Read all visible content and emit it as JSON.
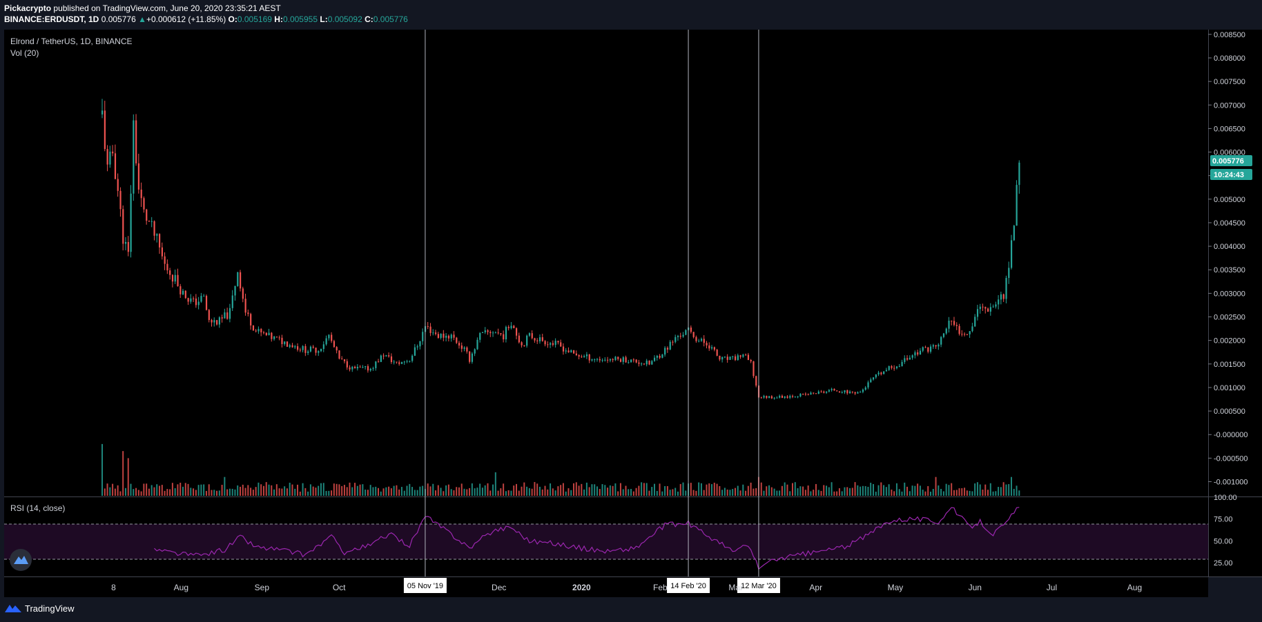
{
  "header": {
    "author": "Pickacrypto",
    "published": "published on TradingView.com, June 20, 2020 23:35:21 AEST",
    "symbol": "BINANCE:ERDUSDT, 1D",
    "last": "0.005776",
    "change_arrow": "▲",
    "change": "+0.000612 (+11.85%)",
    "o_label": "O:",
    "o": "0.005169",
    "h_label": "H:",
    "h": "0.005955",
    "l_label": "L:",
    "l": "0.005092",
    "c_label": "C:",
    "c": "0.005776"
  },
  "legend": {
    "title": "Elrond / TetherUS, 1D, BINANCE",
    "vol": "Vol (20)",
    "rsi": "RSI (14, close)"
  },
  "price_badge": "0.005776",
  "countdown_badge": "10:24:43",
  "footer": {
    "brand": "TradingView",
    "logo_icon": "tradingview-logo-icon"
  },
  "colors": {
    "background": "#000000",
    "frame": "#131722",
    "up": "#26a69a",
    "down": "#ef5350",
    "rsi_line": "#9c27b0",
    "rsi_band": "#1e0a24"
  },
  "chart_data": {
    "type": "candlestick",
    "ylim": [
      -0.0013,
      0.0086
    ],
    "y_ticks": [
      "0.008500",
      "0.008000",
      "0.007500",
      "0.007000",
      "0.006500",
      "0.006000",
      "0.005500",
      "0.005000",
      "0.004500",
      "0.004000",
      "0.003500",
      "0.003000",
      "0.002500",
      "0.002000",
      "0.001500",
      "0.001000",
      "0.000500",
      "-0.000000",
      "-0.000500",
      "-0.001000"
    ],
    "x_range": [
      "2019-07-04",
      "2020-08-31"
    ],
    "x_ticks": [
      {
        "label": "8",
        "date": "2019-07-08"
      },
      {
        "label": "Aug",
        "date": "2019-08-01"
      },
      {
        "label": "Sep",
        "date": "2019-09-01"
      },
      {
        "label": "Oct",
        "date": "2019-10-01"
      },
      {
        "label": "Dec",
        "date": "2019-12-01"
      },
      {
        "label": "2020",
        "date": "2020-01-01"
      },
      {
        "label": "Feb",
        "date": "2020-02-01"
      },
      {
        "label": "Mar",
        "date": "2020-03-01"
      },
      {
        "label": "Apr",
        "date": "2020-04-01"
      },
      {
        "label": "May",
        "date": "2020-05-01"
      },
      {
        "label": "Jun",
        "date": "2020-06-01"
      },
      {
        "label": "Jul",
        "date": "2020-07-01"
      },
      {
        "label": "Aug",
        "date": "2020-08-01"
      }
    ],
    "markers": [
      {
        "label": "05 Nov '19",
        "date": "2019-11-05"
      },
      {
        "label": "14 Feb '20",
        "date": "2020-02-14"
      },
      {
        "label": "12 Mar '20",
        "date": "2020-03-12"
      }
    ],
    "close_path": [
      [
        "2019-07-04",
        0.0068
      ],
      [
        "2019-07-06",
        0.0056
      ],
      [
        "2019-07-08",
        0.006
      ],
      [
        "2019-07-10",
        0.0052
      ],
      [
        "2019-07-12",
        0.0042
      ],
      [
        "2019-07-14",
        0.0038
      ],
      [
        "2019-07-16",
        0.0066
      ],
      [
        "2019-07-18",
        0.0052
      ],
      [
        "2019-07-20",
        0.0047
      ],
      [
        "2019-07-22",
        0.0045
      ],
      [
        "2019-07-25",
        0.0041
      ],
      [
        "2019-07-28",
        0.0036
      ],
      [
        "2019-08-01",
        0.0033
      ],
      [
        "2019-08-04",
        0.003
      ],
      [
        "2019-08-08",
        0.0028
      ],
      [
        "2019-08-12",
        0.0029
      ],
      [
        "2019-08-14",
        0.0024
      ],
      [
        "2019-08-18",
        0.0024
      ],
      [
        "2019-08-22",
        0.0026
      ],
      [
        "2019-08-25",
        0.0035
      ],
      [
        "2019-08-28",
        0.0026
      ],
      [
        "2019-09-01",
        0.0022
      ],
      [
        "2019-09-05",
        0.0021
      ],
      [
        "2019-09-10",
        0.002
      ],
      [
        "2019-09-15",
        0.0019
      ],
      [
        "2019-09-20",
        0.0018
      ],
      [
        "2019-09-25",
        0.0018
      ],
      [
        "2019-09-29",
        0.0021
      ],
      [
        "2019-10-03",
        0.0016
      ],
      [
        "2019-10-08",
        0.0014
      ],
      [
        "2019-10-15",
        0.0014
      ],
      [
        "2019-10-20",
        0.0017
      ],
      [
        "2019-10-25",
        0.0015
      ],
      [
        "2019-10-30",
        0.0016
      ],
      [
        "2019-11-02",
        0.0019
      ],
      [
        "2019-11-05",
        0.0023
      ],
      [
        "2019-11-10",
        0.0021
      ],
      [
        "2019-11-15",
        0.0021
      ],
      [
        "2019-11-20",
        0.0018
      ],
      [
        "2019-11-22",
        0.0016
      ],
      [
        "2019-11-26",
        0.0021
      ],
      [
        "2019-12-01",
        0.0022
      ],
      [
        "2019-12-05",
        0.0021
      ],
      [
        "2019-12-08",
        0.0024
      ],
      [
        "2019-12-12",
        0.0019
      ],
      [
        "2019-12-15",
        0.0021
      ],
      [
        "2019-12-20",
        0.002
      ],
      [
        "2019-12-26",
        0.0019
      ],
      [
        "2020-01-01",
        0.0017
      ],
      [
        "2020-01-10",
        0.0016
      ],
      [
        "2020-01-20",
        0.0016
      ],
      [
        "2020-01-30",
        0.0015
      ],
      [
        "2020-02-05",
        0.0018
      ],
      [
        "2020-02-10",
        0.0021
      ],
      [
        "2020-02-14",
        0.0022
      ],
      [
        "2020-02-18",
        0.002
      ],
      [
        "2020-02-22",
        0.0019
      ],
      [
        "2020-02-26",
        0.0016
      ],
      [
        "2020-03-02",
        0.0016
      ],
      [
        "2020-03-06",
        0.0017
      ],
      [
        "2020-03-09",
        0.0015
      ],
      [
        "2020-03-12",
        0.0008
      ],
      [
        "2020-03-14",
        0.0008
      ],
      [
        "2020-03-20",
        0.0008
      ],
      [
        "2020-03-30",
        0.00085
      ],
      [
        "2020-04-05",
        0.0009
      ],
      [
        "2020-04-10",
        0.00095
      ],
      [
        "2020-04-15",
        0.0009
      ],
      [
        "2020-04-20",
        0.0009
      ],
      [
        "2020-04-25",
        0.0012
      ],
      [
        "2020-05-01",
        0.0014
      ],
      [
        "2020-05-05",
        0.0015
      ],
      [
        "2020-05-10",
        0.0017
      ],
      [
        "2020-05-14",
        0.0018
      ],
      [
        "2020-05-20",
        0.0019
      ],
      [
        "2020-05-24",
        0.0024
      ],
      [
        "2020-05-28",
        0.0022
      ],
      [
        "2020-06-01",
        0.0022
      ],
      [
        "2020-06-04",
        0.0027
      ],
      [
        "2020-06-08",
        0.0027
      ],
      [
        "2020-06-11",
        0.0028
      ],
      [
        "2020-06-14",
        0.003
      ],
      [
        "2020-06-16",
        0.0036
      ],
      [
        "2020-06-18",
        0.0045
      ],
      [
        "2020-06-19",
        0.0052
      ],
      [
        "2020-06-20",
        0.005776
      ]
    ],
    "volume_peaks": [
      [
        "2019-07-04",
        0.0011
      ],
      [
        "2019-07-12",
        0.00095
      ],
      [
        "2019-07-14",
        0.0008
      ],
      [
        "2019-08-20",
        0.0004
      ],
      [
        "2019-12-02",
        0.0005
      ],
      [
        "2020-03-12",
        0.0004
      ],
      [
        "2020-05-19",
        0.0004
      ],
      [
        "2020-06-17",
        0.0004
      ]
    ],
    "rsi": {
      "ylim": [
        10,
        100
      ],
      "ticks": [
        "100.00",
        "75.00",
        "50.00",
        "25.00"
      ],
      "overbought": 70,
      "oversold": 30,
      "points": [
        [
          "2019-07-24",
          40
        ],
        [
          "2019-08-01",
          36
        ],
        [
          "2019-08-10",
          33
        ],
        [
          "2019-08-20",
          40
        ],
        [
          "2019-08-26",
          55
        ],
        [
          "2019-09-01",
          43
        ],
        [
          "2019-09-10",
          40
        ],
        [
          "2019-09-20",
          34
        ],
        [
          "2019-09-30",
          55
        ],
        [
          "2019-10-05",
          37
        ],
        [
          "2019-10-15",
          45
        ],
        [
          "2019-10-22",
          58
        ],
        [
          "2019-10-30",
          45
        ],
        [
          "2019-11-05",
          78
        ],
        [
          "2019-11-15",
          58
        ],
        [
          "2019-11-22",
          42
        ],
        [
          "2019-12-01",
          62
        ],
        [
          "2019-12-08",
          66
        ],
        [
          "2019-12-15",
          50
        ],
        [
          "2019-12-25",
          47
        ],
        [
          "2020-01-05",
          41
        ],
        [
          "2020-01-15",
          38
        ],
        [
          "2020-01-25",
          42
        ],
        [
          "2020-02-05",
          68
        ],
        [
          "2020-02-14",
          70
        ],
        [
          "2020-02-22",
          55
        ],
        [
          "2020-03-02",
          38
        ],
        [
          "2020-03-08",
          45
        ],
        [
          "2020-03-12",
          20
        ],
        [
          "2020-03-20",
          30
        ],
        [
          "2020-04-01",
          36
        ],
        [
          "2020-04-15",
          44
        ],
        [
          "2020-04-22",
          55
        ],
        [
          "2020-05-01",
          73
        ],
        [
          "2020-05-10",
          76
        ],
        [
          "2020-05-20",
          72
        ],
        [
          "2020-05-25",
          88
        ],
        [
          "2020-06-01",
          66
        ],
        [
          "2020-06-05",
          72
        ],
        [
          "2020-06-10",
          58
        ],
        [
          "2020-06-15",
          70
        ],
        [
          "2020-06-20",
          91
        ]
      ]
    }
  }
}
